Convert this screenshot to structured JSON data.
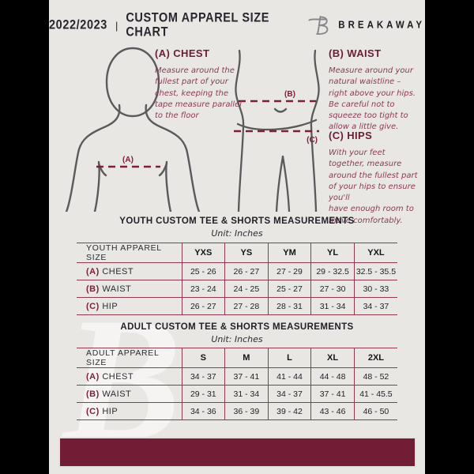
{
  "header": {
    "year": "2022/2023",
    "separator": "|",
    "title": "CUSTOM APPAREL SIZE CHART",
    "brand": "BREAKAWAY"
  },
  "colors": {
    "maroon": "#711d36",
    "table_border": "#93394e",
    "dashed_line": "#7c2038",
    "instruction_text": "#8c3a54",
    "figure_outline": "#5a5a5c",
    "document_bg": "#e8e7e4",
    "canvas_bg": "#000000"
  },
  "instructions": [
    {
      "heading": "(A) CHEST",
      "body": "Measure around the\nfullest part of your\nchest, keeping the\ntape measure parallel\nto the floor"
    },
    {
      "heading": "(B) WAIST",
      "body": "Measure around your\nnatural waistline –\nright above your hips.\nBe careful not to\nsqueeze too tight to\nallow a little give."
    },
    {
      "heading": "(C) HIPS",
      "body": "With your feet\ntogether, measure\naround the fullest part\nof your hips to ensure\nyou'll\nhave enough room to\nmove comfortably."
    }
  ],
  "diagram_labels": {
    "chest": "(A)",
    "waist": "(B)",
    "hips": "(C)"
  },
  "tables": [
    {
      "title": "YOUTH CUSTOM TEE & SHORTS MEASUREMENTS",
      "unit": "Unit: Inches",
      "header": [
        "YOUTH APPAREL SIZE",
        "YXS",
        "YS",
        "YM",
        "YL",
        "YXL"
      ],
      "rows": [
        {
          "prefix": "(A)",
          "label": "CHEST",
          "values": [
            "25 - 26",
            "26 - 27",
            "27 - 29",
            "29 - 32.5",
            "32.5 - 35.5"
          ]
        },
        {
          "prefix": "(B)",
          "label": "WAIST",
          "values": [
            "23 - 24",
            "24 - 25",
            "25 - 27",
            "27 - 30",
            "30 - 33"
          ]
        },
        {
          "prefix": "(C)",
          "label": "HIP",
          "values": [
            "26 - 27",
            "27 - 28",
            "28 - 31",
            "31 - 34",
            "34 - 37"
          ]
        }
      ]
    },
    {
      "title": "ADULT CUSTOM TEE & SHORTS MEASUREMENTS",
      "unit": "Unit: Inches",
      "header": [
        "ADULT APPAREL SIZE",
        "S",
        "M",
        "L",
        "XL",
        "2XL"
      ],
      "rows": [
        {
          "prefix": "(A)",
          "label": "CHEST",
          "values": [
            "34 - 37",
            "37 - 41",
            "41 - 44",
            "44 - 48",
            "48 - 52"
          ]
        },
        {
          "prefix": "(B)",
          "label": "WAIST",
          "values": [
            "29 - 31",
            "31 - 34",
            "34 - 37",
            "37 - 41",
            "41 - 45.5"
          ]
        },
        {
          "prefix": "(C)",
          "label": "HIP",
          "values": [
            "34 - 36",
            "36 - 39",
            "39 - 42",
            "43 - 46",
            "46 - 50"
          ]
        }
      ]
    }
  ],
  "watermark": "B"
}
